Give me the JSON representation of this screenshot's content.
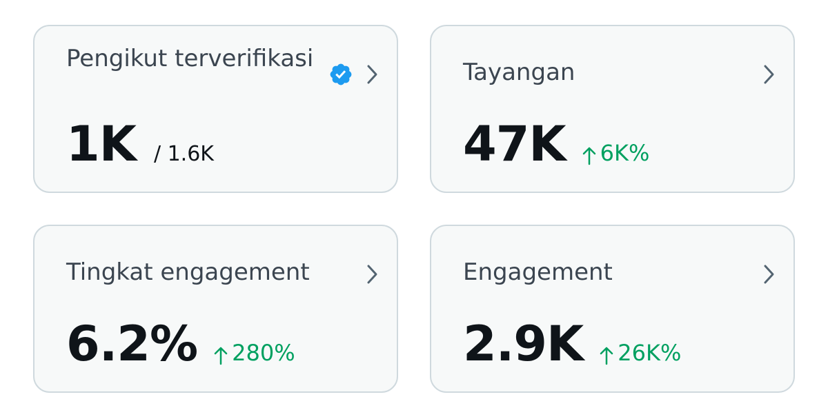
{
  "cards": [
    {
      "title": "Pengikut terverifikasi",
      "value": "1K",
      "secondary": "/ 1.6K",
      "verified": true
    },
    {
      "title": "Tayangan",
      "value": "47K",
      "change": "6K%"
    },
    {
      "title": "Tingkat engagement",
      "value": "6.2%",
      "change": "280%"
    },
    {
      "title": "Engagement",
      "value": "2.9K",
      "change": "26K%"
    }
  ]
}
